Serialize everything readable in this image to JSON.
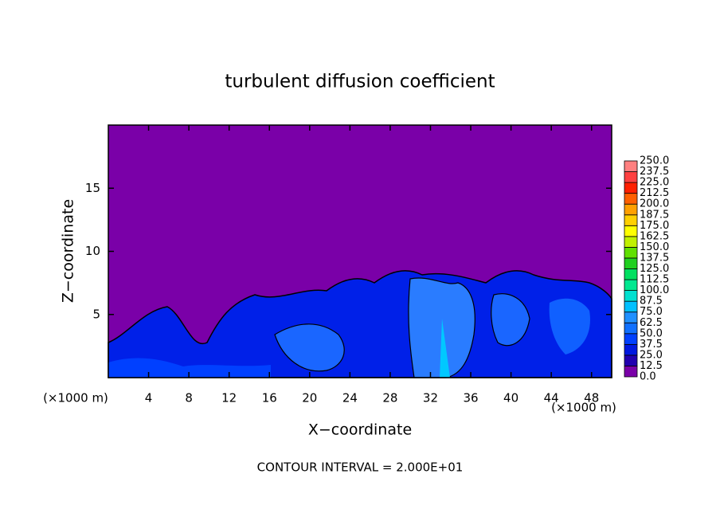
{
  "chart_data": {
    "type": "contour",
    "title": "turbulent diffusion coefficient",
    "xlabel": "X−coordinate",
    "ylabel": "Z−coordinate",
    "x_unit": "(×1000 m)",
    "annotation": "CONTOUR INTERVAL = 2.000E+01",
    "xlim": [
      0,
      50
    ],
    "ylim": [
      0,
      20
    ],
    "xticks": [
      4,
      8,
      12,
      16,
      20,
      24,
      28,
      32,
      36,
      40,
      44,
      48
    ],
    "yticks": [
      5,
      10,
      15
    ],
    "colorbar": {
      "levels": [
        {
          "value": 0,
          "label": "0.0"
        },
        {
          "value": 12.5,
          "label": "12.5"
        },
        {
          "value": 25,
          "label": "25.0"
        },
        {
          "value": 37.5,
          "label": "37.5"
        },
        {
          "value": 50,
          "label": "50.0"
        },
        {
          "value": 62.5,
          "label": "62.5"
        },
        {
          "value": 75,
          "label": "75.0"
        },
        {
          "value": 87.5,
          "label": "87.5"
        },
        {
          "value": 100,
          "label": "100.0"
        },
        {
          "value": 112.5,
          "label": "112.5"
        },
        {
          "value": 125,
          "label": "125.0"
        },
        {
          "value": 137.5,
          "label": "137.5"
        },
        {
          "value": 150,
          "label": "150.0"
        },
        {
          "value": 162.5,
          "label": "162.5"
        },
        {
          "value": 175,
          "label": "175.0"
        },
        {
          "value": 187.5,
          "label": "187.5"
        },
        {
          "value": 200,
          "label": "200.0"
        },
        {
          "value": 212.5,
          "label": "212.5"
        },
        {
          "value": 225,
          "label": "225.0"
        },
        {
          "value": 237.5,
          "label": "237.5"
        },
        {
          "value": 250,
          "label": "250.0"
        }
      ],
      "colors": [
        "#7a00a8",
        "#2200b0",
        "#0018e0",
        "#0040ff",
        "#1070ff",
        "#2090ff",
        "#00c0ff",
        "#00e0d0",
        "#00e890",
        "#00e060",
        "#20d020",
        "#60e000",
        "#c0f000",
        "#ffff00",
        "#ffd000",
        "#ffa000",
        "#ff6000",
        "#ff2000",
        "#ff4040",
        "#ff8080"
      ]
    }
  }
}
